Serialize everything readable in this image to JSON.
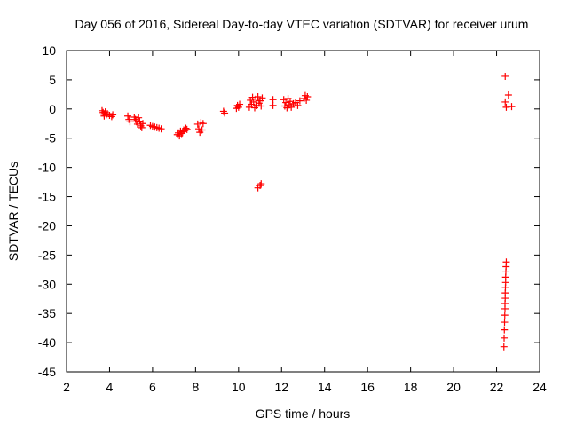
{
  "chart_data": {
    "type": "scatter",
    "title": "Day 056 of 2016, Sidereal Day-to-day VTEC variation (SDTVAR) for receiver urum",
    "xlabel": "GPS time / hours",
    "ylabel": "SDTVAR / TECUs",
    "xlim": [
      2,
      24
    ],
    "ylim": [
      -45,
      10
    ],
    "xticks": [
      2,
      4,
      6,
      8,
      10,
      12,
      14,
      16,
      18,
      20,
      22,
      24
    ],
    "yticks": [
      10,
      5,
      0,
      -5,
      -10,
      -15,
      -20,
      -25,
      -30,
      -35,
      -40,
      -45
    ],
    "grid": false,
    "legend": "none",
    "marker": "plus",
    "color": "#ff0000",
    "series": [
      {
        "points": [
          [
            3.65,
            -0.3
          ],
          [
            3.7,
            -0.6
          ],
          [
            3.75,
            -0.9
          ],
          [
            3.75,
            -1.2
          ],
          [
            3.8,
            -0.5
          ],
          [
            3.85,
            -1.0
          ],
          [
            3.9,
            -0.8
          ],
          [
            4.0,
            -1.1
          ],
          [
            4.1,
            -1.3
          ],
          [
            4.15,
            -1.0
          ],
          [
            4.85,
            -1.2
          ],
          [
            4.9,
            -1.8
          ],
          [
            4.95,
            -2.2
          ],
          [
            5.15,
            -1.4
          ],
          [
            5.2,
            -1.8
          ],
          [
            5.25,
            -2.2
          ],
          [
            5.3,
            -2.6
          ],
          [
            5.35,
            -1.5
          ],
          [
            5.4,
            -2.1
          ],
          [
            5.45,
            -2.9
          ],
          [
            5.5,
            -3.2
          ],
          [
            5.55,
            -2.5
          ],
          [
            5.9,
            -2.8
          ],
          [
            6.0,
            -3.0
          ],
          [
            6.1,
            -3.1
          ],
          [
            6.2,
            -3.2
          ],
          [
            6.3,
            -3.3
          ],
          [
            6.4,
            -3.4
          ],
          [
            7.15,
            -4.4
          ],
          [
            7.2,
            -4.1
          ],
          [
            7.25,
            -4.6
          ],
          [
            7.3,
            -3.8
          ],
          [
            7.35,
            -4.2
          ],
          [
            7.4,
            -3.9
          ],
          [
            7.45,
            -3.6
          ],
          [
            7.5,
            -3.7
          ],
          [
            7.55,
            -3.3
          ],
          [
            7.6,
            -3.5
          ],
          [
            8.1,
            -2.6
          ],
          [
            8.15,
            -3.4
          ],
          [
            8.2,
            -4.0
          ],
          [
            8.25,
            -2.3
          ],
          [
            8.3,
            -3.6
          ],
          [
            8.35,
            -2.5
          ],
          [
            9.3,
            -0.4
          ],
          [
            9.35,
            -0.7
          ],
          [
            9.9,
            0.1
          ],
          [
            9.95,
            0.6
          ],
          [
            10.0,
            0.3
          ],
          [
            10.05,
            0.8
          ],
          [
            10.5,
            0.3
          ],
          [
            10.55,
            1.5
          ],
          [
            10.6,
            0.8
          ],
          [
            10.65,
            2.0
          ],
          [
            10.7,
            1.2
          ],
          [
            10.75,
            0.2
          ],
          [
            10.8,
            1.7
          ],
          [
            10.85,
            0.6
          ],
          [
            10.9,
            2.1
          ],
          [
            10.95,
            1.0
          ],
          [
            11.0,
            1.4
          ],
          [
            11.05,
            0.5
          ],
          [
            11.1,
            1.9
          ],
          [
            10.9,
            -13.5
          ],
          [
            11.0,
            -13.1
          ],
          [
            11.05,
            -12.8
          ],
          [
            11.6,
            0.6
          ],
          [
            11.6,
            1.6
          ],
          [
            12.1,
            1.6
          ],
          [
            12.15,
            0.5
          ],
          [
            12.2,
            1.1
          ],
          [
            12.25,
            0.2
          ],
          [
            12.3,
            1.8
          ],
          [
            12.35,
            0.7
          ],
          [
            12.4,
            1.3
          ],
          [
            12.45,
            0.3
          ],
          [
            12.55,
            0.9
          ],
          [
            12.65,
            1.1
          ],
          [
            12.75,
            0.6
          ],
          [
            12.85,
            1.4
          ],
          [
            13.05,
            1.8
          ],
          [
            13.1,
            2.3
          ],
          [
            13.15,
            1.5
          ],
          [
            13.2,
            2.1
          ],
          [
            22.4,
            5.6
          ],
          [
            22.4,
            1.2
          ],
          [
            22.45,
            0.3
          ],
          [
            22.55,
            2.4
          ],
          [
            22.7,
            0.4
          ],
          [
            22.45,
            -26.2
          ],
          [
            22.44,
            -27.0
          ],
          [
            22.43,
            -27.9
          ],
          [
            22.42,
            -28.8
          ],
          [
            22.42,
            -29.7
          ],
          [
            22.41,
            -30.6
          ],
          [
            22.4,
            -31.5
          ],
          [
            22.4,
            -32.4
          ],
          [
            22.39,
            -33.3
          ],
          [
            22.39,
            -34.2
          ],
          [
            22.38,
            -35.3
          ],
          [
            22.37,
            -36.5
          ],
          [
            22.36,
            -37.8
          ],
          [
            22.35,
            -39.2
          ],
          [
            22.34,
            -40.7
          ]
        ]
      }
    ]
  }
}
